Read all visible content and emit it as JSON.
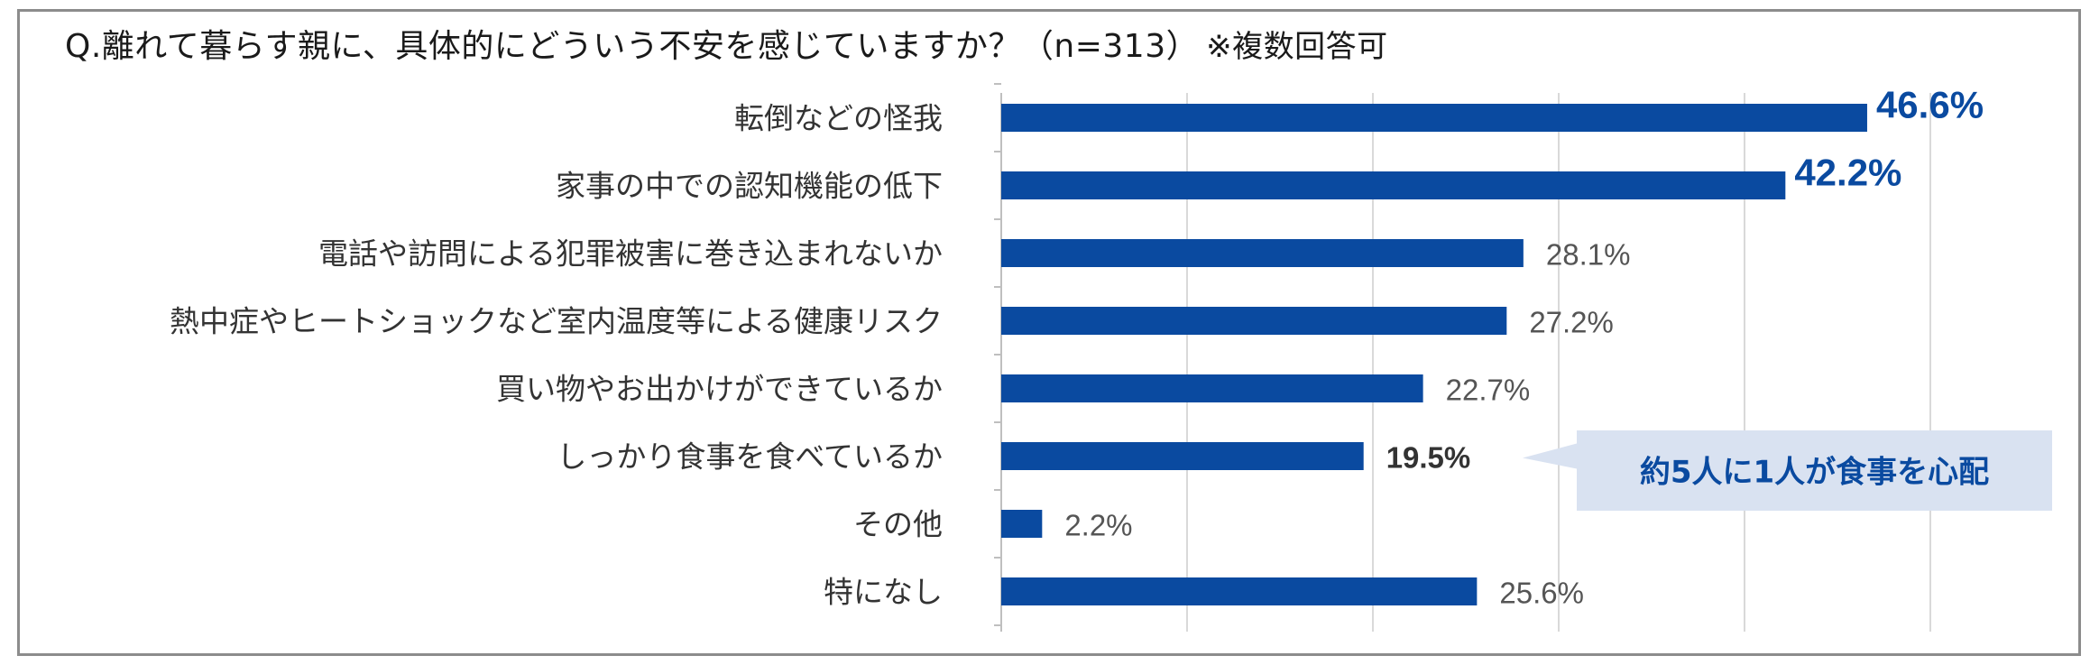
{
  "question": {
    "text": "Q.離れて暮らす親に、具体的にどういう不安を感じていますか？（n=313）",
    "note": "※複数回答可"
  },
  "chart_data": {
    "type": "bar",
    "orientation": "horizontal",
    "categories": [
      "転倒などの怪我",
      "家事の中での認知機能の低下",
      "電話や訪問による犯罪被害に巻き込まれないか",
      "熱中症やヒートショックなど室内温度等による健康リスク",
      "買い物やお出かけができているか",
      "しっかり食事を食べているか",
      "その他",
      "特になし"
    ],
    "values": [
      46.6,
      42.2,
      28.1,
      27.2,
      22.7,
      19.5,
      2.2,
      25.6
    ],
    "value_labels": [
      "46.6%",
      "42.2%",
      "28.1%",
      "27.2%",
      "22.7%",
      "19.5%",
      "2.2%",
      "25.6%"
    ],
    "label_styles": [
      "emph",
      "emph",
      "normal",
      "normal",
      "normal",
      "strong",
      "normal",
      "normal"
    ],
    "xlim": [
      0,
      50
    ],
    "grid": true,
    "bar_color": "#0a4aa0",
    "grid_color": "#d9d9d9",
    "callout": {
      "text": "約5人に1人が食事を心配",
      "category_index": 5,
      "fill": "#d9e2f1"
    }
  }
}
